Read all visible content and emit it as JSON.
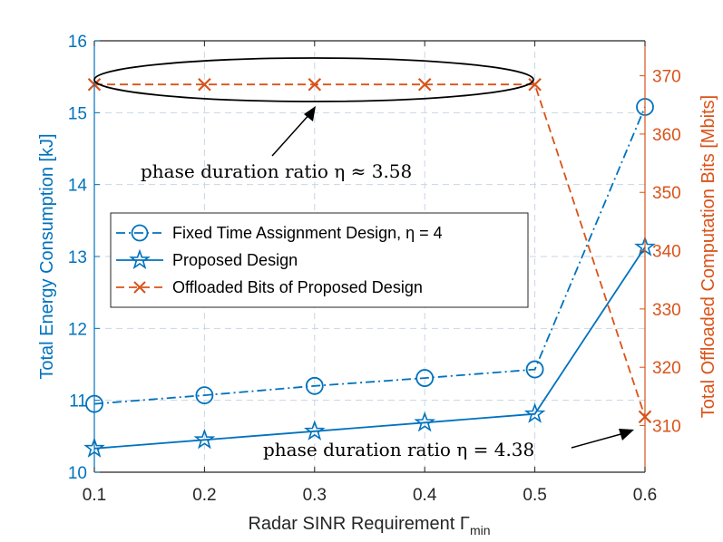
{
  "chart_data": {
    "type": "line",
    "x": [
      0.1,
      0.2,
      0.3,
      0.4,
      0.5,
      0.6
    ],
    "x_tick_labels": [
      "0.1",
      "0.2",
      "0.3",
      "0.4",
      "0.5",
      "0.6"
    ],
    "xlim": [
      0.1,
      0.6
    ],
    "xlabel_main": "Radar SINR Requirement Γ",
    "xlabel_sub": "min",
    "ylabel_left": "Total Energy Consumption [kJ]",
    "ylim_left": [
      10,
      16
    ],
    "y_left_ticks": [
      10,
      11,
      12,
      13,
      14,
      15,
      16
    ],
    "ylabel_right": "Total Offloaded Computation Bits [Mbits]",
    "ylim_right": [
      302,
      376
    ],
    "y_right_ticks": [
      310,
      320,
      330,
      340,
      350,
      360,
      370
    ],
    "grid": true,
    "legend_position": "center-left",
    "series": [
      {
        "name": "Fixed Time Assignment Design, η = 4",
        "axis": "left",
        "color": "#0072BD",
        "dash": "dashdot",
        "marker": "circle",
        "values": [
          10.95,
          11.07,
          11.2,
          11.31,
          11.43,
          15.08
        ]
      },
      {
        "name": "Proposed Design",
        "axis": "left",
        "color": "#0072BD",
        "dash": "solid",
        "marker": "star",
        "values": [
          10.33,
          10.45,
          10.57,
          10.69,
          10.81,
          13.13
        ]
      },
      {
        "name": "Offloaded Bits of Proposed Design",
        "axis": "right",
        "color": "#D95319",
        "dash": "dashed",
        "marker": "x",
        "values": [
          368.5,
          368.5,
          368.5,
          368.5,
          368.5,
          311.5
        ]
      }
    ],
    "annotations": [
      {
        "text": "phase duration ratio η ≈ 3.58"
      },
      {
        "text": "phase duration ratio η = 4.38"
      }
    ]
  },
  "colors": {
    "left_axis": "#0072BD",
    "right_axis": "#D95319",
    "grid": "#c9d6e3"
  }
}
